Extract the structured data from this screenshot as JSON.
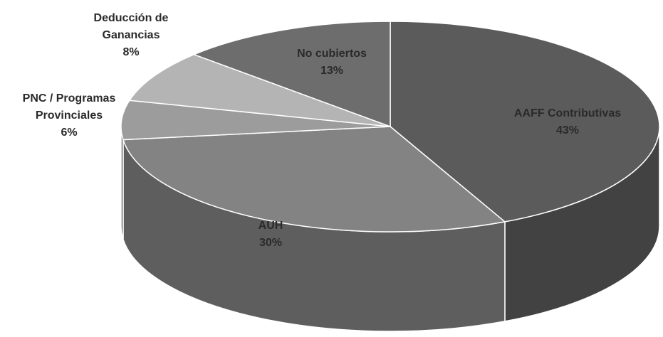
{
  "chart_data": {
    "type": "pie3d",
    "categories": [
      "AAFF Contributivas",
      "AUH",
      "PNC / Programas Provinciales",
      "Deducción de Ganancias",
      "No cubiertos"
    ],
    "values": [
      43,
      30,
      6,
      8,
      13
    ],
    "value_labels": [
      "43%",
      "30%",
      "6%",
      "8%",
      "13%"
    ],
    "colors": [
      "#5b5b5b",
      "#838383",
      "#9c9c9c",
      "#b4b4b4",
      "#6d6d6d"
    ]
  }
}
